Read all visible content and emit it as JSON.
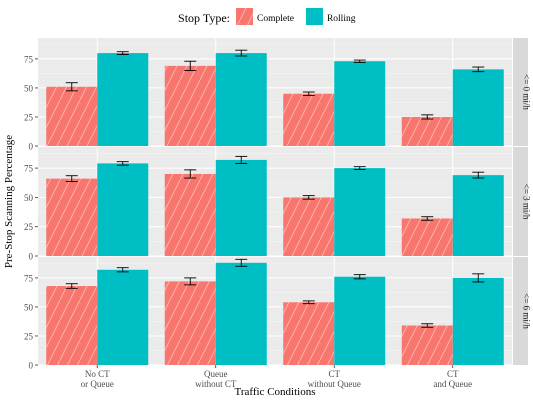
{
  "chart_data": {
    "type": "bar",
    "xlabel": "Traffic Conditions",
    "ylabel": "Pre-Stop Scanning Percentage",
    "legend": {
      "title": "Stop Type:",
      "position": "top",
      "entries": [
        {
          "label": "Complete",
          "color": "#F8766D",
          "hatched": true
        },
        {
          "label": "Rolling",
          "color": "#00BFC4",
          "hatched": false
        }
      ]
    },
    "categories": [
      [
        "No CT",
        "or Queue"
      ],
      [
        "Queue",
        "without CT"
      ],
      [
        "CT",
        "without Queue"
      ],
      [
        "CT",
        "and Queue"
      ]
    ],
    "ylim": [
      0,
      93
    ],
    "yticks": [
      0,
      25,
      50,
      75
    ],
    "grid": true,
    "panels": [
      {
        "strip": "<= 0 mi/h",
        "series": [
          {
            "name": "Complete",
            "values": [
              51,
              69,
              45,
              25
            ],
            "err": [
              3.5,
              4,
              1.5,
              1.8
            ]
          },
          {
            "name": "Rolling",
            "values": [
              80,
              80,
              73,
              66
            ],
            "err": [
              1.2,
              2.5,
              1,
              2
            ]
          }
        ]
      },
      {
        "strip": "<= 3 mi/h",
        "series": [
          {
            "name": "Complete",
            "values": [
              66,
              70,
              50,
              32
            ],
            "err": [
              2.5,
              3.5,
              1.5,
              1.5
            ]
          },
          {
            "name": "Rolling",
            "values": [
              79,
              82,
              75,
              69
            ],
            "err": [
              1.5,
              3,
              1.2,
              2.5
            ]
          }
        ]
      },
      {
        "strip": "<= 6 mi/h",
        "series": [
          {
            "name": "Complete",
            "values": [
              68,
              72,
              54,
              34
            ],
            "err": [
              2,
              3,
              1.2,
              1.5
            ]
          },
          {
            "name": "Rolling",
            "values": [
              82,
              88,
              76,
              75
            ],
            "err": [
              1.8,
              3,
              1.8,
              3.5
            ]
          }
        ]
      }
    ]
  }
}
